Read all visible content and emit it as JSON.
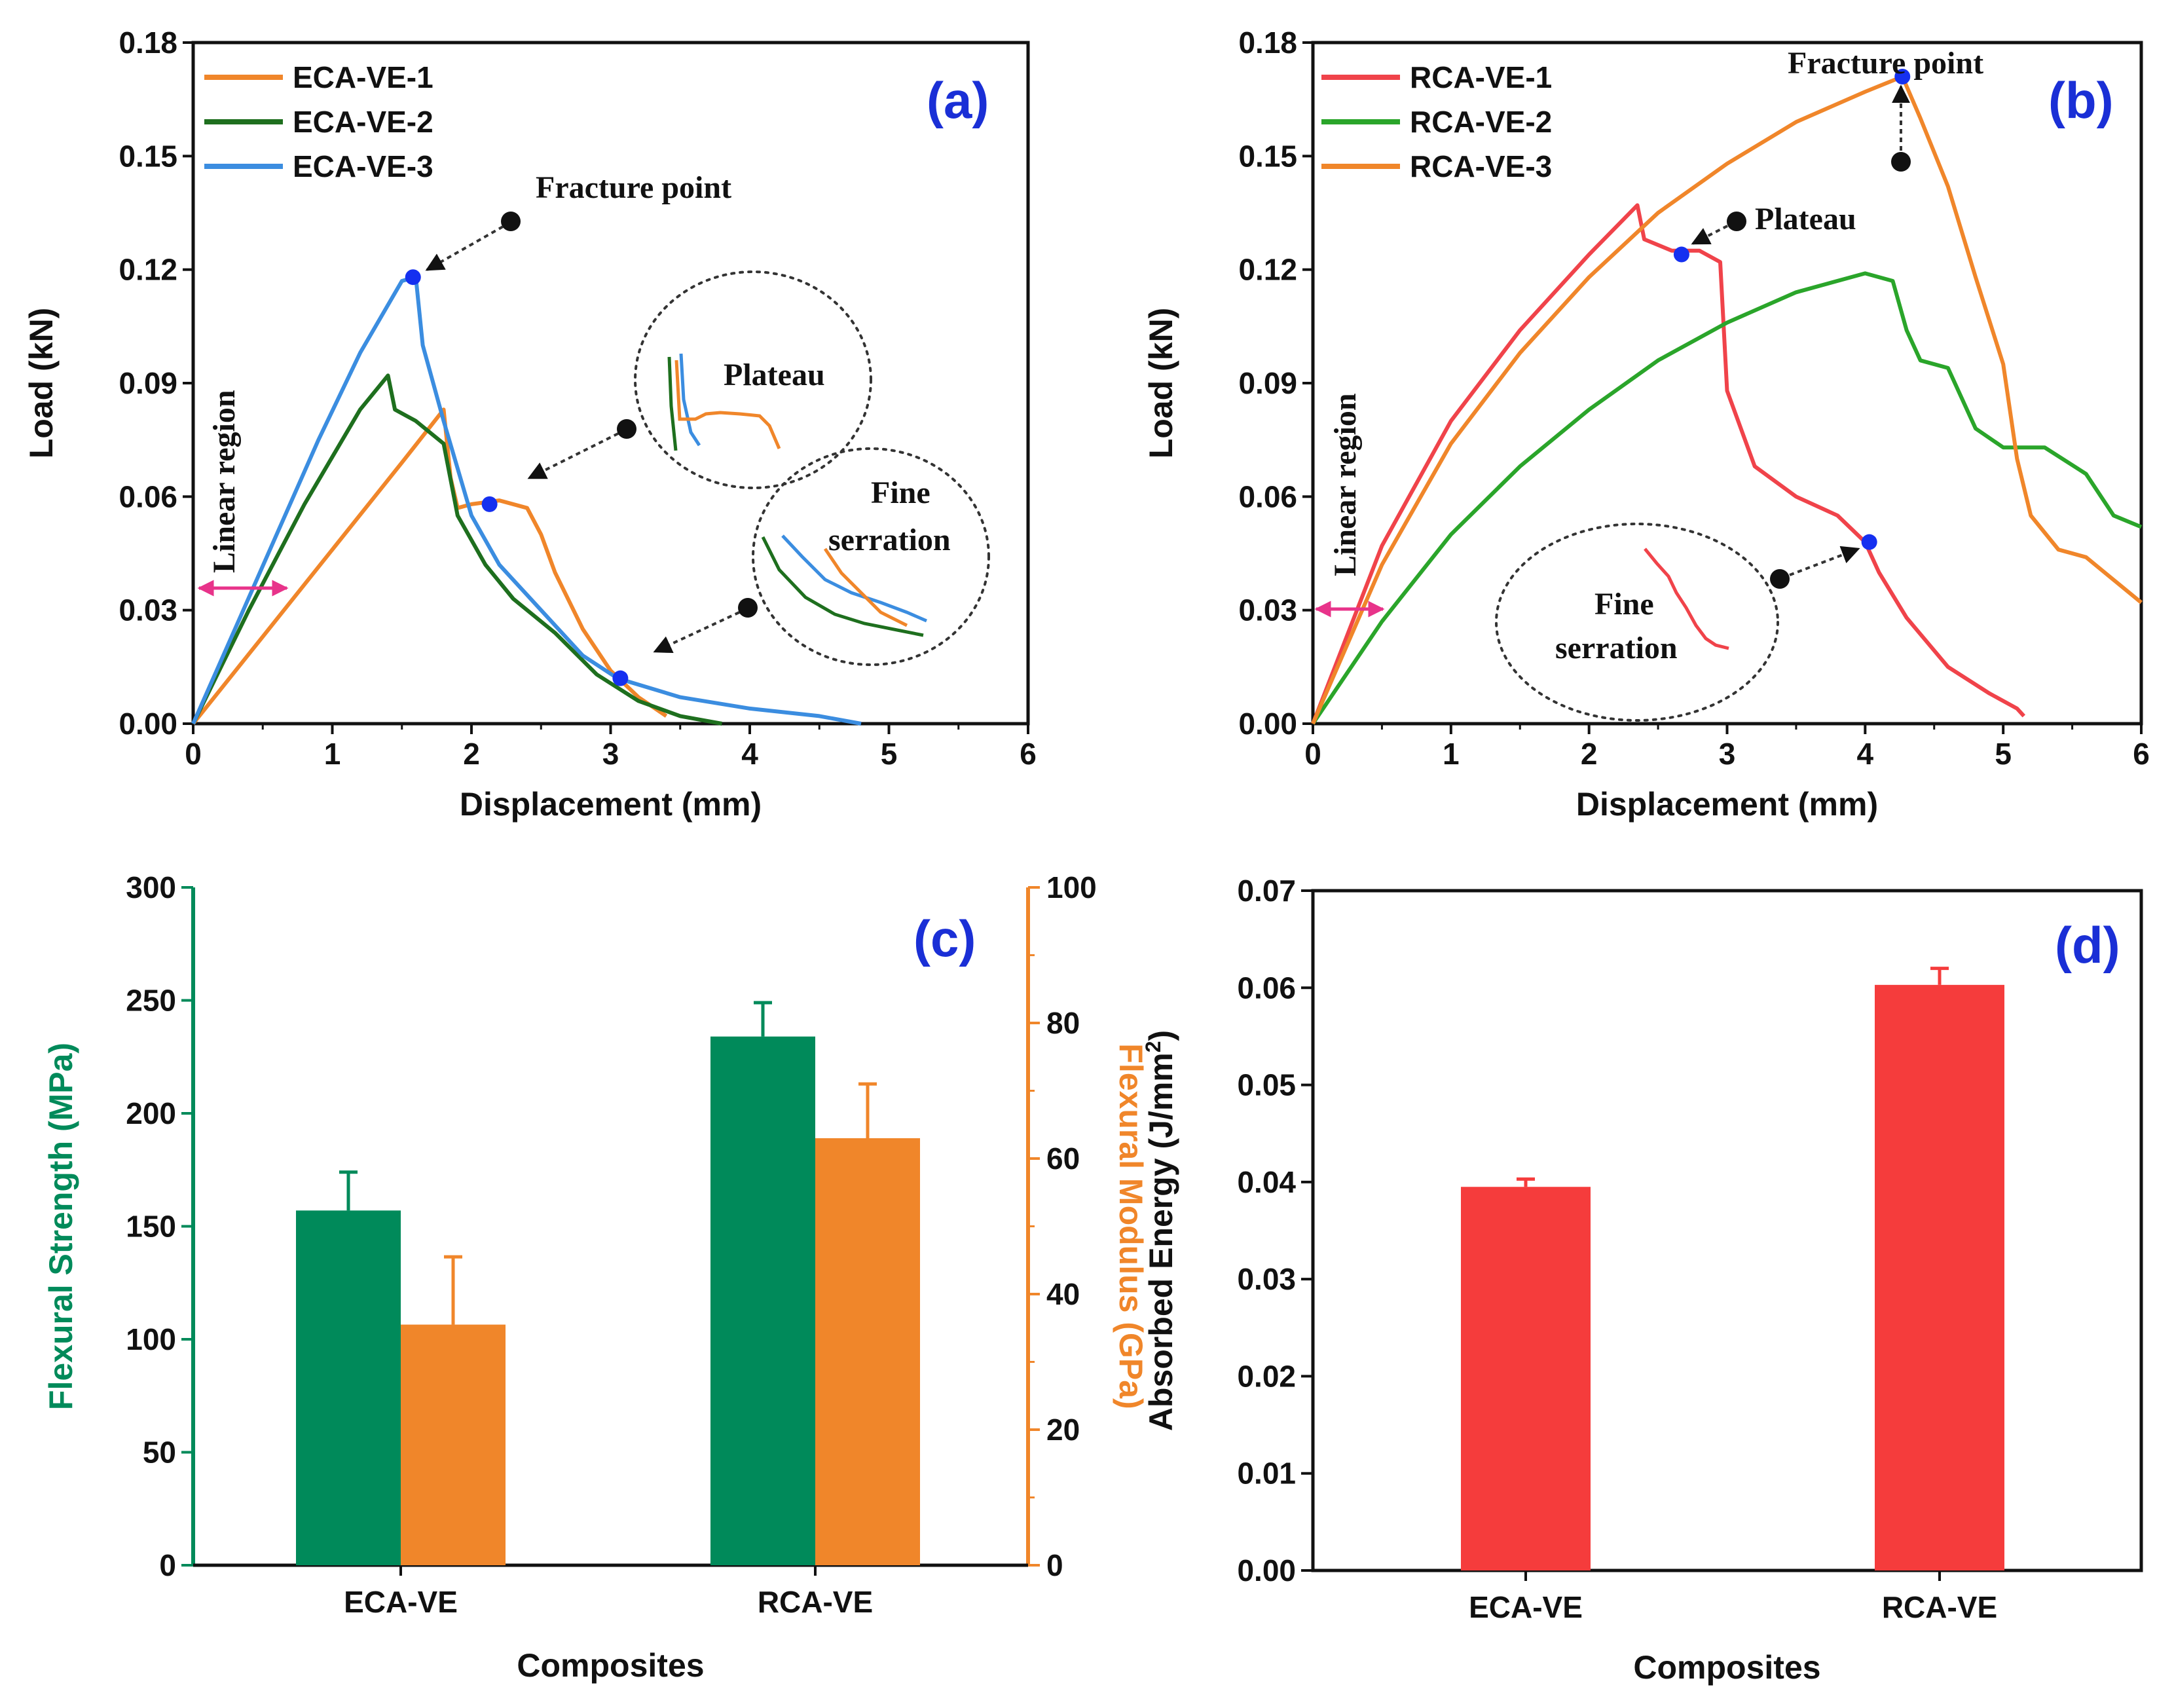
{
  "colors": {
    "orange": "#f0862a",
    "green_dark": "#1e6f1e",
    "blue": "#3b8de0",
    "red": "#f0434a",
    "green_bright": "#2aa52a",
    "bar_green": "#008a5a",
    "bar_orange": "#f0862a",
    "bar_red": "#f53c3c",
    "marker_blue": "#1530f0",
    "panel_label": "#1a2fd6",
    "arrow_pink": "#e8338a"
  },
  "chart_data": [
    {
      "id": "a",
      "type": "line",
      "panel_label": "(a)",
      "xlabel": "Displacement (mm)",
      "ylabel": "Load (kN)",
      "xlim": [
        0,
        6
      ],
      "ylim": [
        0,
        0.18
      ],
      "xticks": [
        "0",
        "1",
        "2",
        "3",
        "4",
        "5",
        "6"
      ],
      "yticks": [
        "0.00",
        "0.03",
        "0.06",
        "0.09",
        "0.12",
        "0.15",
        "0.18"
      ],
      "legend_position": "top-left",
      "series": [
        {
          "name": "ECA-VE-1",
          "color_key": "orange",
          "x": [
            0,
            0.5,
            1.0,
            1.5,
            1.8,
            1.85,
            1.9,
            2.0,
            2.2,
            2.4,
            2.5,
            2.6,
            2.8,
            3.0,
            3.2,
            3.4
          ],
          "y": [
            0,
            0.023,
            0.046,
            0.069,
            0.083,
            0.065,
            0.057,
            0.058,
            0.059,
            0.057,
            0.05,
            0.04,
            0.025,
            0.014,
            0.007,
            0.002
          ]
        },
        {
          "name": "ECA-VE-2",
          "color_key": "green_dark",
          "x": [
            0,
            0.4,
            0.8,
            1.2,
            1.4,
            1.45,
            1.6,
            1.8,
            1.9,
            2.1,
            2.3,
            2.6,
            2.9,
            3.2,
            3.5,
            3.8
          ],
          "y": [
            0,
            0.03,
            0.058,
            0.083,
            0.092,
            0.083,
            0.08,
            0.074,
            0.055,
            0.042,
            0.033,
            0.024,
            0.013,
            0.006,
            0.002,
            0.0
          ]
        },
        {
          "name": "ECA-VE-3",
          "color_key": "blue",
          "x": [
            0,
            0.3,
            0.6,
            0.9,
            1.2,
            1.5,
            1.6,
            1.65,
            1.8,
            2.0,
            2.2,
            2.5,
            2.8,
            3.05,
            3.5,
            4.0,
            4.5,
            4.8
          ],
          "y": [
            0,
            0.025,
            0.05,
            0.075,
            0.098,
            0.117,
            0.118,
            0.1,
            0.08,
            0.055,
            0.042,
            0.03,
            0.018,
            0.012,
            0.007,
            0.004,
            0.002,
            0.0
          ]
        }
      ],
      "markers": [
        {
          "x": 1.58,
          "y": 0.118
        },
        {
          "x": 2.13,
          "y": 0.058
        },
        {
          "x": 3.07,
          "y": 0.012
        }
      ],
      "annotations": {
        "fracture": "Fracture point",
        "plateau": "Plateau",
        "fine": "Fine",
        "serration": "serration",
        "linear": "Linear region"
      }
    },
    {
      "id": "b",
      "type": "line",
      "panel_label": "(b)",
      "xlabel": "Displacement (mm)",
      "ylabel": "Load (kN)",
      "xlim": [
        0,
        6
      ],
      "ylim": [
        0,
        0.18
      ],
      "xticks": [
        "0",
        "1",
        "2",
        "3",
        "4",
        "5",
        "6"
      ],
      "yticks": [
        "0.00",
        "0.03",
        "0.06",
        "0.09",
        "0.12",
        "0.15",
        "0.18"
      ],
      "legend_position": "top-left",
      "series": [
        {
          "name": "RCA-VE-1",
          "color_key": "red",
          "x": [
            0,
            0.5,
            1.0,
            1.5,
            2.0,
            2.35,
            2.4,
            2.6,
            2.8,
            2.95,
            3.0,
            3.2,
            3.5,
            3.8,
            4.0,
            4.1,
            4.3,
            4.6,
            4.9,
            5.1,
            5.15
          ],
          "y": [
            0,
            0.047,
            0.08,
            0.104,
            0.124,
            0.137,
            0.128,
            0.125,
            0.125,
            0.122,
            0.088,
            0.068,
            0.06,
            0.055,
            0.048,
            0.04,
            0.028,
            0.015,
            0.008,
            0.004,
            0.002
          ]
        },
        {
          "name": "RCA-VE-2",
          "color_key": "green_bright",
          "x": [
            0,
            0.5,
            1.0,
            1.5,
            2.0,
            2.5,
            3.0,
            3.5,
            4.0,
            4.2,
            4.3,
            4.4,
            4.6,
            4.8,
            5.0,
            5.3,
            5.6,
            5.8,
            6.0
          ],
          "y": [
            0,
            0.027,
            0.05,
            0.068,
            0.083,
            0.096,
            0.106,
            0.114,
            0.119,
            0.117,
            0.104,
            0.096,
            0.094,
            0.078,
            0.073,
            0.073,
            0.066,
            0.055,
            0.052
          ]
        },
        {
          "name": "RCA-VE-3",
          "color_key": "orange",
          "x": [
            0,
            0.5,
            1.0,
            1.5,
            2.0,
            2.5,
            3.0,
            3.5,
            4.0,
            4.27,
            4.4,
            4.6,
            4.8,
            5.0,
            5.1,
            5.2,
            5.4,
            5.6,
            5.8,
            6.0
          ],
          "y": [
            0,
            0.042,
            0.074,
            0.098,
            0.118,
            0.135,
            0.148,
            0.159,
            0.167,
            0.171,
            0.16,
            0.142,
            0.118,
            0.095,
            0.07,
            0.055,
            0.046,
            0.044,
            0.038,
            0.032
          ]
        }
      ],
      "markers": [
        {
          "x": 2.67,
          "y": 0.124
        },
        {
          "x": 4.27,
          "y": 0.171
        },
        {
          "x": 4.03,
          "y": 0.048
        }
      ],
      "annotations": {
        "fracture": "Fracture point",
        "plateau": "Plateau",
        "fine": "Fine",
        "serration": "serration",
        "linear": "Linear region"
      }
    },
    {
      "id": "c",
      "type": "bar",
      "panel_label": "(c)",
      "categories": [
        "ECA-VE",
        "RCA-VE"
      ],
      "xlabel": "Composites",
      "ylabel": "Flexural Strength (MPa)",
      "ylabel_right": "Flexural Modulus (GPa)",
      "ylim": [
        0,
        300
      ],
      "ylim_right": [
        0,
        100
      ],
      "yticks": [
        "0",
        "50",
        "100",
        "150",
        "200",
        "250",
        "300"
      ],
      "yticks_right": [
        "0",
        "20",
        "40",
        "60",
        "80",
        "100"
      ],
      "series": [
        {
          "name": "Flexural Strength",
          "axis": "left",
          "color_key": "bar_green",
          "values": [
            157,
            234
          ],
          "errors": [
            17,
            15
          ]
        },
        {
          "name": "Flexural Modulus",
          "axis": "right",
          "color_key": "bar_orange",
          "values": [
            35.5,
            63
          ],
          "errors": [
            10,
            8
          ]
        }
      ]
    },
    {
      "id": "d",
      "type": "bar",
      "panel_label": "(d)",
      "categories": [
        "ECA-VE",
        "RCA-VE"
      ],
      "xlabel": "Composites",
      "ylabel": "Absorbed Energy (J/mm",
      "ylabel_sup": "2",
      "ylabel_close": ")",
      "ylim": [
        0,
        0.07
      ],
      "yticks": [
        "0.00",
        "0.01",
        "0.02",
        "0.03",
        "0.04",
        "0.05",
        "0.06",
        "0.07"
      ],
      "series": [
        {
          "name": "Absorbed Energy",
          "color_key": "bar_red",
          "values": [
            0.0395,
            0.0603
          ],
          "errors": [
            0.0008,
            0.0017
          ]
        }
      ]
    }
  ]
}
